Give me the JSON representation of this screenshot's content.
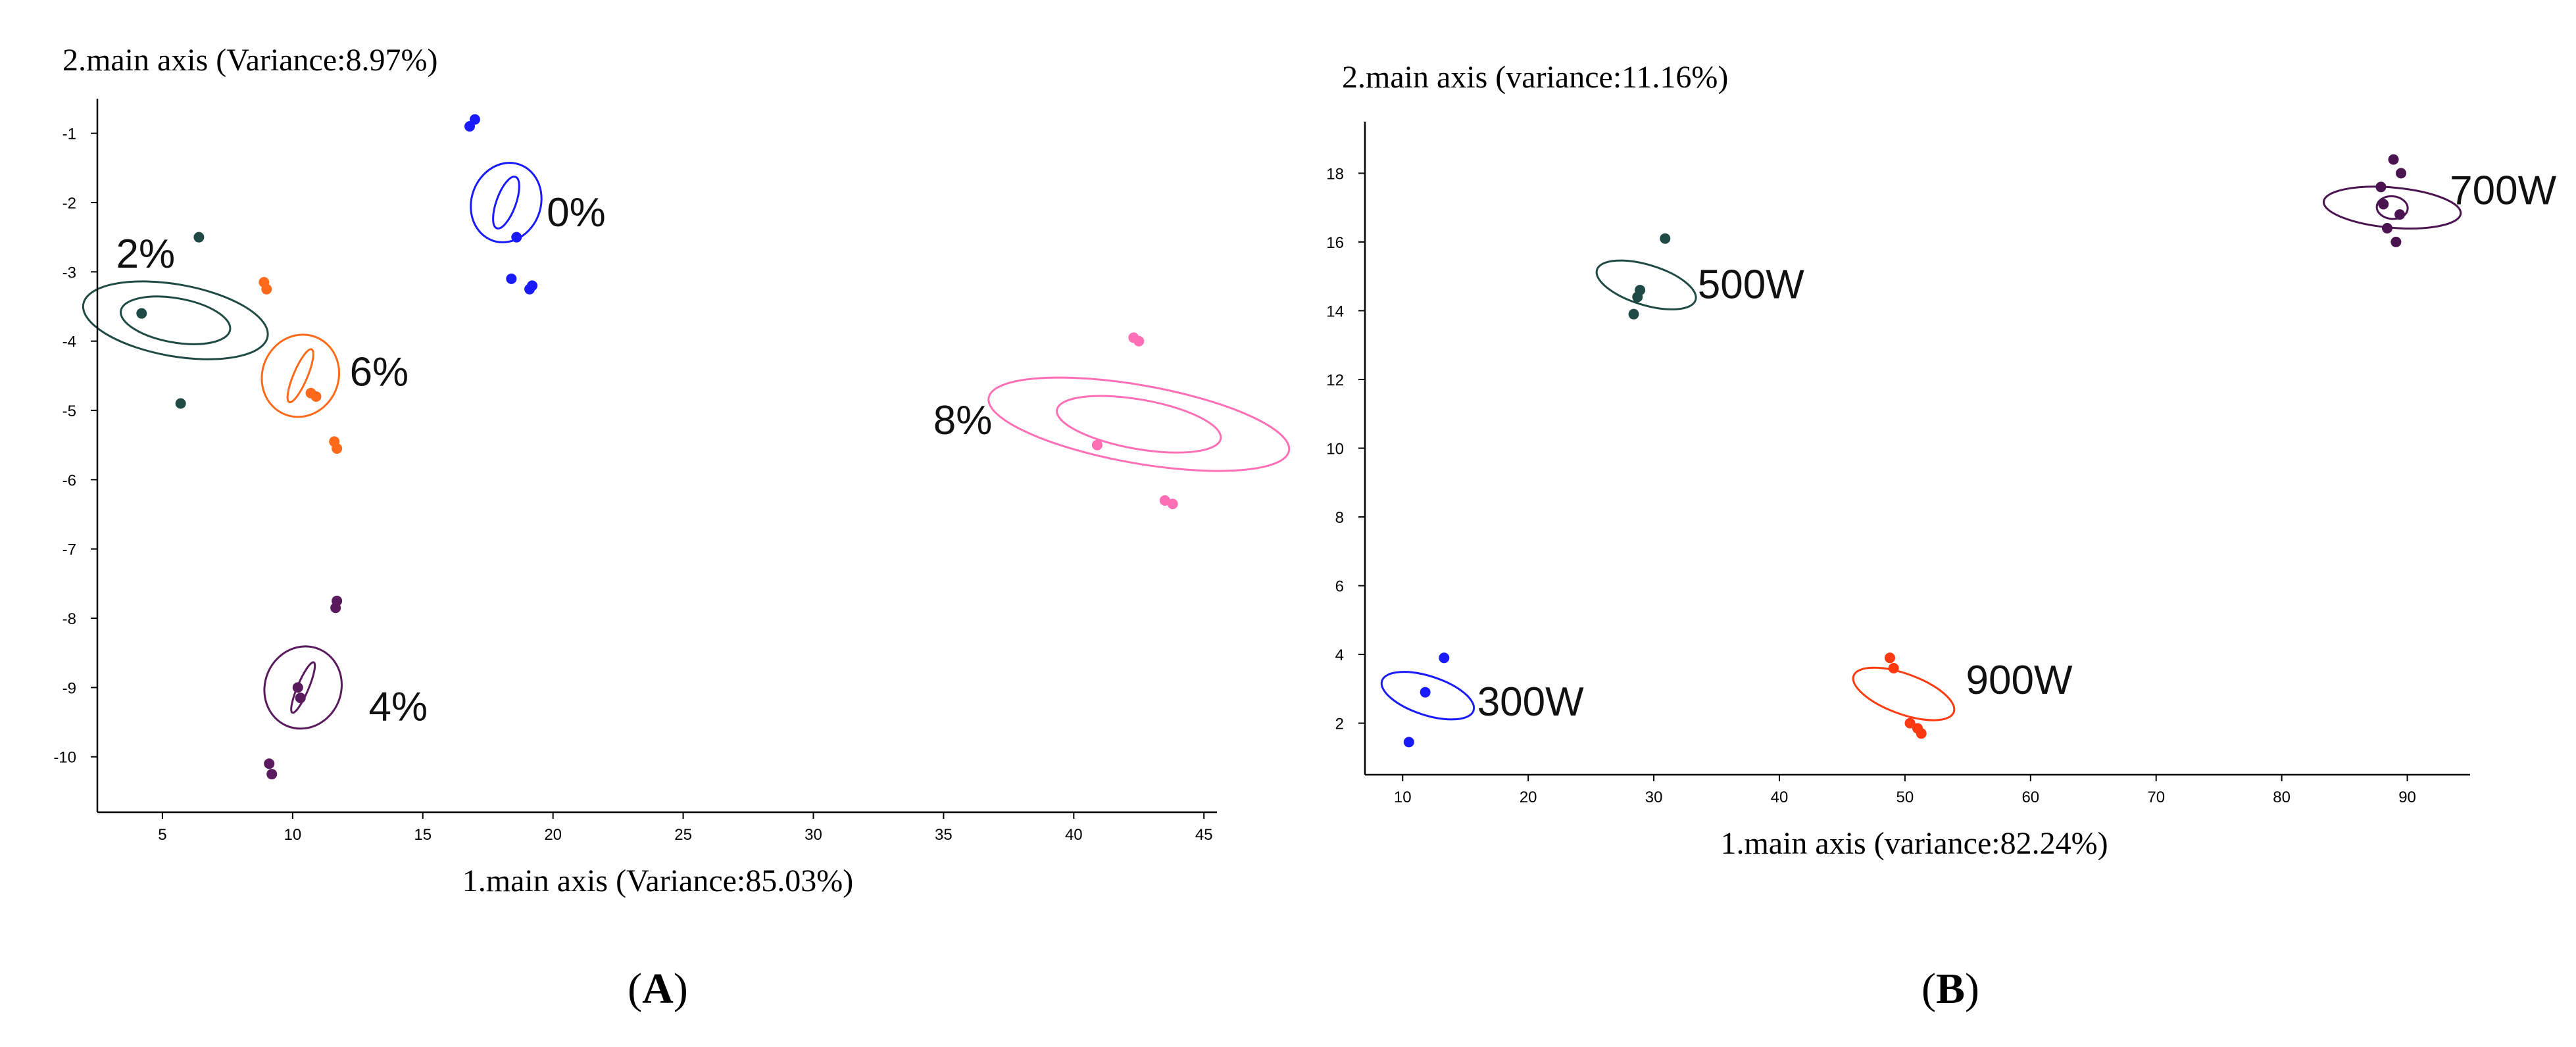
{
  "chart_data": [
    {
      "type": "scatter",
      "panel_label": "A",
      "xlabel": "1.main axis (Variance:85.03%)",
      "ylabel": "2.main axis (Variance:8.97%)",
      "xlim": [
        2.5,
        45.5
      ],
      "ylim": [
        -10.8,
        -0.5
      ],
      "xticks": [
        5,
        10,
        15,
        20,
        25,
        30,
        35,
        40,
        45
      ],
      "yticks": [
        -1,
        -2,
        -3,
        -4,
        -5,
        -6,
        -7,
        -8,
        -9,
        -10
      ],
      "groups": [
        {
          "name": "0%",
          "color": "#1a1aff",
          "center": [
            18.2,
            -2.0
          ],
          "semi_major": 1.55,
          "semi_minor": 0.5,
          "angle_deg": -70,
          "inner": {
            "semi_major": 1.05,
            "semi_minor": 0.14
          },
          "points": [
            [
              16.8,
              -0.9
            ],
            [
              17.0,
              -0.8
            ],
            [
              18.6,
              -2.5
            ],
            [
              18.4,
              -3.1
            ],
            [
              19.2,
              -3.2
            ],
            [
              19.1,
              -3.25
            ]
          ]
        },
        {
          "name": "2%",
          "color": "#1f4a45",
          "center": [
            5.5,
            -3.7
          ],
          "semi_major": 1.38,
          "semi_minor": 1.35,
          "angle_deg": -80,
          "inner": {
            "semi_major": 0.85,
            "semi_minor": 0.8
          },
          "points": [
            [
              4.2,
              -3.6
            ],
            [
              6.4,
              -2.5
            ],
            [
              5.7,
              -4.9
            ]
          ]
        },
        {
          "name": "4%",
          "color": "#5a1a5e",
          "center": [
            10.4,
            -9.0
          ],
          "semi_major": 1.6,
          "semi_minor": 0.55,
          "angle_deg": -67,
          "inner": {
            "semi_major": 1.05,
            "semi_minor": 0.08
          },
          "points": [
            [
              11.7,
              -7.75
            ],
            [
              11.65,
              -7.85
            ],
            [
              10.2,
              -9.0
            ],
            [
              10.3,
              -9.15
            ],
            [
              9.1,
              -10.1
            ],
            [
              9.2,
              -10.25
            ]
          ]
        },
        {
          "name": "6%",
          "color": "#ff6a1a",
          "center": [
            10.3,
            -4.5
          ],
          "semi_major": 1.6,
          "semi_minor": 0.55,
          "angle_deg": -67,
          "inner": {
            "semi_major": 1.1,
            "semi_minor": 0.1
          },
          "points": [
            [
              8.9,
              -3.15
            ],
            [
              9.0,
              -3.25
            ],
            [
              10.7,
              -4.75
            ],
            [
              10.9,
              -4.8
            ],
            [
              11.6,
              -5.45
            ],
            [
              11.7,
              -5.55
            ]
          ]
        },
        {
          "name": "8%",
          "color": "#ff6fb5",
          "center": [
            42.5,
            -5.2
          ],
          "semi_major": 1.5,
          "semi_minor": 2.2,
          "angle_deg": -80,
          "inner": {
            "semi_major": 0.95,
            "semi_minor": 1.2
          },
          "points": [
            [
              42.3,
              -3.95
            ],
            [
              42.5,
              -4.0
            ],
            [
              40.9,
              -5.5
            ],
            [
              43.5,
              -6.3
            ],
            [
              43.8,
              -6.35
            ]
          ]
        }
      ]
    },
    {
      "type": "scatter",
      "panel_label": "B",
      "xlabel": "1.main axis (variance:82.24%)",
      "ylabel": "2.main axis (variance:11.16%)",
      "xlim": [
        7,
        95
      ],
      "ylim": [
        0.5,
        19.5
      ],
      "xticks": [
        10,
        20,
        30,
        40,
        50,
        60,
        70,
        80,
        90
      ],
      "yticks": [
        2,
        4,
        6,
        8,
        10,
        12,
        14,
        16,
        18
      ],
      "groups": [
        {
          "name": "300W",
          "color": "#1a1aff",
          "center": [
            12.0,
            2.8
          ],
          "semi_major": 1.55,
          "semi_minor": 1.4,
          "angle_deg": -72,
          "points": [
            [
              10.5,
              1.45
            ],
            [
              11.8,
              2.9
            ],
            [
              13.3,
              3.9
            ]
          ]
        },
        {
          "name": "500W",
          "color": "#1f4a45",
          "center": [
            29.4,
            14.75
          ],
          "semi_major": 1.6,
          "semi_minor": 1.5,
          "angle_deg": -73,
          "points": [
            [
              28.4,
              13.9
            ],
            [
              28.7,
              14.4
            ],
            [
              28.9,
              14.6
            ],
            [
              30.9,
              16.1
            ]
          ]
        },
        {
          "name": "700W",
          "color": "#4a1450",
          "center": [
            88.8,
            17.0
          ],
          "semi_major": 1.6,
          "semi_minor": 2.0,
          "angle_deg": -85,
          "inner": {
            "semi_major": 0.9,
            "semi_minor": 0.45
          },
          "points": [
            [
              87.9,
              17.6
            ],
            [
              88.1,
              17.1
            ],
            [
              88.4,
              16.4
            ],
            [
              88.9,
              18.4
            ],
            [
              89.1,
              16.0
            ],
            [
              89.5,
              18.0
            ],
            [
              89.4,
              16.8
            ]
          ]
        },
        {
          "name": "900W",
          "color": "#ff3a10",
          "center": [
            49.9,
            2.85
          ],
          "semi_major": 1.6,
          "semi_minor": 1.55,
          "angle_deg": -70,
          "points": [
            [
              48.8,
              3.9
            ],
            [
              49.1,
              3.6
            ],
            [
              50.4,
              2.0
            ],
            [
              51.0,
              1.85
            ],
            [
              51.3,
              1.7
            ]
          ]
        }
      ]
    }
  ]
}
